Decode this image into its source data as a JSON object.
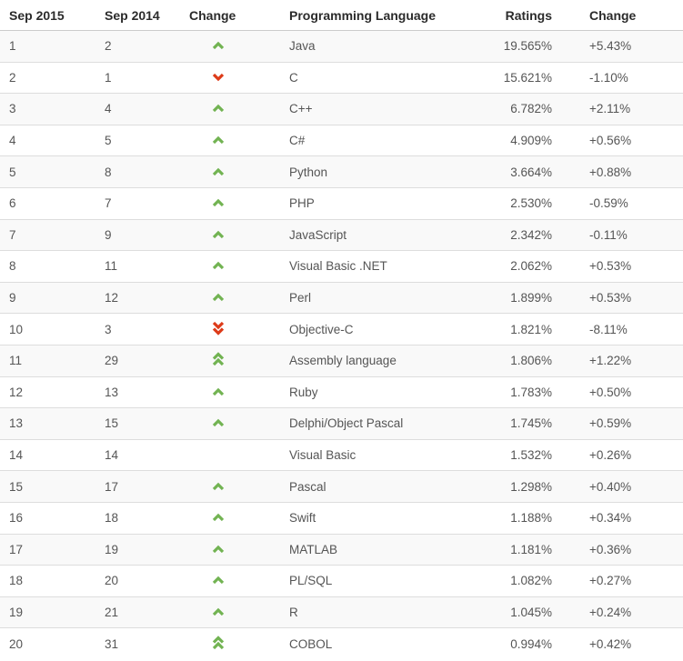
{
  "table": {
    "columns": [
      "Sep 2015",
      "Sep 2014",
      "Change",
      "Programming Language",
      "Ratings",
      "Change"
    ],
    "rows": [
      {
        "pos2015": "1",
        "pos2014": "2",
        "change": "up",
        "language": "Java",
        "ratings": "19.565%",
        "delta": "+5.43%"
      },
      {
        "pos2015": "2",
        "pos2014": "1",
        "change": "down",
        "language": "C",
        "ratings": "15.621%",
        "delta": "-1.10%"
      },
      {
        "pos2015": "3",
        "pos2014": "4",
        "change": "up",
        "language": "C++",
        "ratings": "6.782%",
        "delta": "+2.11%"
      },
      {
        "pos2015": "4",
        "pos2014": "5",
        "change": "up",
        "language": "C#",
        "ratings": "4.909%",
        "delta": "+0.56%"
      },
      {
        "pos2015": "5",
        "pos2014": "8",
        "change": "up",
        "language": "Python",
        "ratings": "3.664%",
        "delta": "+0.88%"
      },
      {
        "pos2015": "6",
        "pos2014": "7",
        "change": "up",
        "language": "PHP",
        "ratings": "2.530%",
        "delta": "-0.59%"
      },
      {
        "pos2015": "7",
        "pos2014": "9",
        "change": "up",
        "language": "JavaScript",
        "ratings": "2.342%",
        "delta": "-0.11%"
      },
      {
        "pos2015": "8",
        "pos2014": "11",
        "change": "up",
        "language": "Visual Basic .NET",
        "ratings": "2.062%",
        "delta": "+0.53%"
      },
      {
        "pos2015": "9",
        "pos2014": "12",
        "change": "up",
        "language": "Perl",
        "ratings": "1.899%",
        "delta": "+0.53%"
      },
      {
        "pos2015": "10",
        "pos2014": "3",
        "change": "down2",
        "language": "Objective-C",
        "ratings": "1.821%",
        "delta": "-8.11%"
      },
      {
        "pos2015": "11",
        "pos2014": "29",
        "change": "up2",
        "language": "Assembly language",
        "ratings": "1.806%",
        "delta": "+1.22%"
      },
      {
        "pos2015": "12",
        "pos2014": "13",
        "change": "up",
        "language": "Ruby",
        "ratings": "1.783%",
        "delta": "+0.50%"
      },
      {
        "pos2015": "13",
        "pos2014": "15",
        "change": "up",
        "language": "Delphi/Object Pascal",
        "ratings": "1.745%",
        "delta": "+0.59%"
      },
      {
        "pos2015": "14",
        "pos2014": "14",
        "change": "none",
        "language": "Visual Basic",
        "ratings": "1.532%",
        "delta": "+0.26%"
      },
      {
        "pos2015": "15",
        "pos2014": "17",
        "change": "up",
        "language": "Pascal",
        "ratings": "1.298%",
        "delta": "+0.40%"
      },
      {
        "pos2015": "16",
        "pos2014": "18",
        "change": "up",
        "language": "Swift",
        "ratings": "1.188%",
        "delta": "+0.34%"
      },
      {
        "pos2015": "17",
        "pos2014": "19",
        "change": "up",
        "language": "MATLAB",
        "ratings": "1.181%",
        "delta": "+0.36%"
      },
      {
        "pos2015": "18",
        "pos2014": "20",
        "change": "up",
        "language": "PL/SQL",
        "ratings": "1.082%",
        "delta": "+0.27%"
      },
      {
        "pos2015": "19",
        "pos2014": "21",
        "change": "up",
        "language": "R",
        "ratings": "1.045%",
        "delta": "+0.24%"
      },
      {
        "pos2015": "20",
        "pos2014": "31",
        "change": "up2",
        "language": "COBOL",
        "ratings": "0.994%",
        "delta": "+0.42%"
      }
    ]
  },
  "change_icons": {
    "up": "chevron-up-icon",
    "down": "chevron-down-icon",
    "up2": "double-chevron-up-icon",
    "down2": "double-chevron-down-icon"
  },
  "colors": {
    "up_arrow": "#72b352",
    "down_arrow": "#dd3b19",
    "row_stripe": "#f9f9f9",
    "row_border": "#dddddd",
    "header_text": "#2b2b2b",
    "body_text": "#555555"
  }
}
